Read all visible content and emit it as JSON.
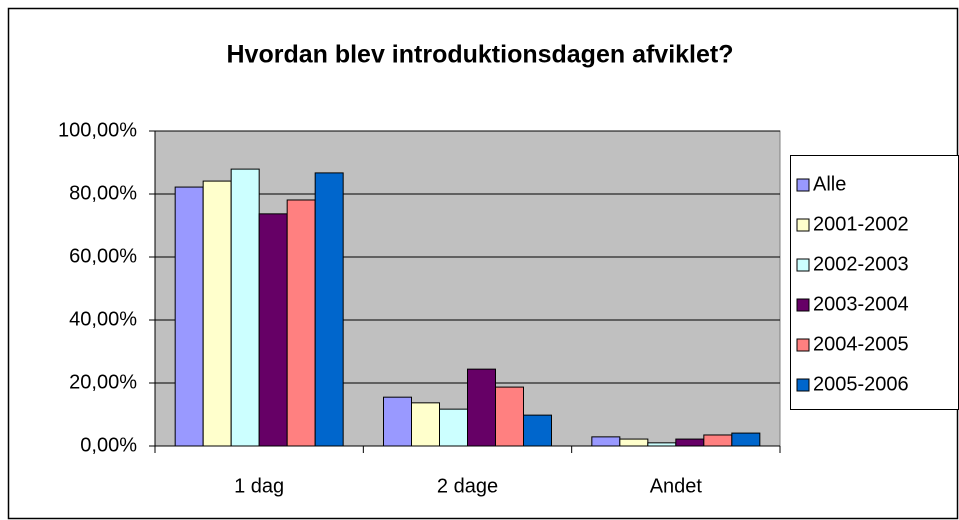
{
  "chart_data": {
    "type": "bar",
    "title": "Hvordan blev introduktionsdagen afviklet?",
    "categories": [
      "1 dag",
      "2 dage",
      "Andet"
    ],
    "series": [
      {
        "name": "Alle",
        "color": "#9999ff",
        "values": [
          82.2,
          15.5,
          2.9
        ]
      },
      {
        "name": "2001-2002",
        "color": "#ffffcc",
        "values": [
          84.1,
          13.7,
          2.2
        ]
      },
      {
        "name": "2002-2003",
        "color": "#ccffff",
        "values": [
          87.9,
          11.7,
          1.0
        ]
      },
      {
        "name": "2003-2004",
        "color": "#660066",
        "values": [
          73.7,
          24.4,
          2.2
        ]
      },
      {
        "name": "2004-2005",
        "color": "#ff8080",
        "values": [
          78.1,
          18.7,
          3.5
        ]
      },
      {
        "name": "2005-2006",
        "color": "#0066cc",
        "values": [
          86.7,
          9.8,
          4.1
        ]
      }
    ],
    "ylim": [
      0,
      100
    ],
    "yticks": [
      {
        "value": 0,
        "label": "0,00%"
      },
      {
        "value": 20,
        "label": "20,00%"
      },
      {
        "value": 40,
        "label": "40,00%"
      },
      {
        "value": 60,
        "label": "60,00%"
      },
      {
        "value": 80,
        "label": "80,00%"
      },
      {
        "value": 100,
        "label": "100,00%"
      }
    ],
    "grid": true,
    "legend": "right"
  }
}
